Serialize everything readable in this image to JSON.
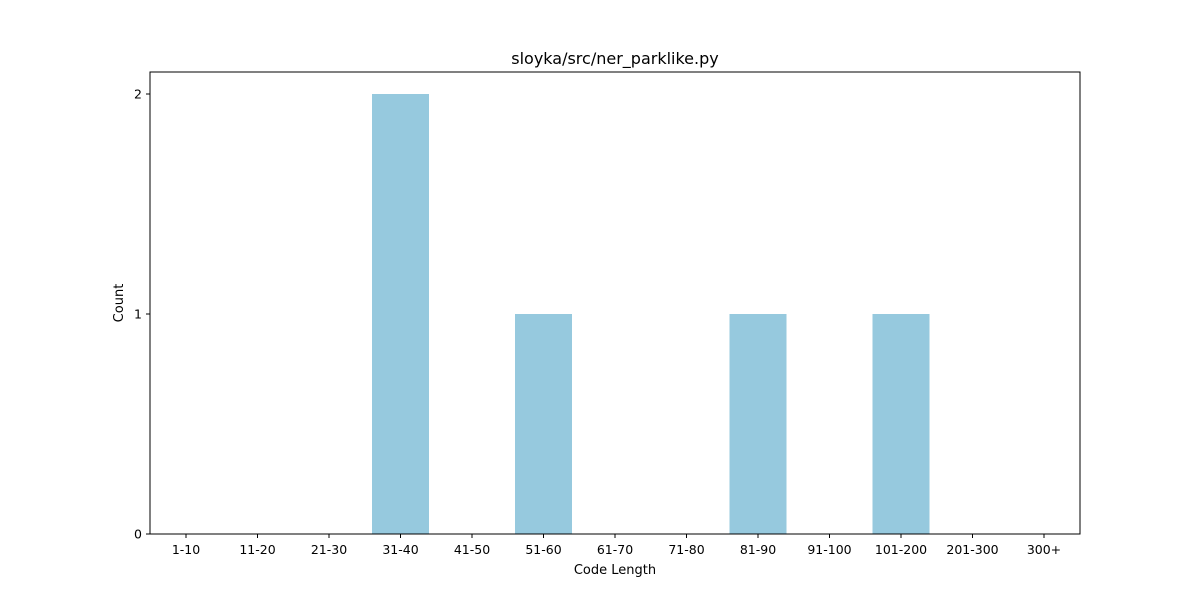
{
  "chart_data": {
    "type": "bar",
    "title": "sloyka/src/ner_parklike.py",
    "xlabel": "Code Length",
    "ylabel": "Count",
    "categories": [
      "1-10",
      "11-20",
      "21-30",
      "31-40",
      "41-50",
      "51-60",
      "61-70",
      "71-80",
      "81-90",
      "91-100",
      "101-200",
      "201-300",
      "300+"
    ],
    "values": [
      0,
      0,
      0,
      2,
      0,
      1,
      0,
      0,
      1,
      0,
      1,
      0,
      0
    ],
    "ylim": [
      0,
      2.1
    ],
    "yticks": [
      0,
      1,
      2
    ],
    "grid": false,
    "legend": "none",
    "colors": {
      "bar": "#96c9de",
      "axis": "#000000",
      "background": "#ffffff"
    }
  }
}
